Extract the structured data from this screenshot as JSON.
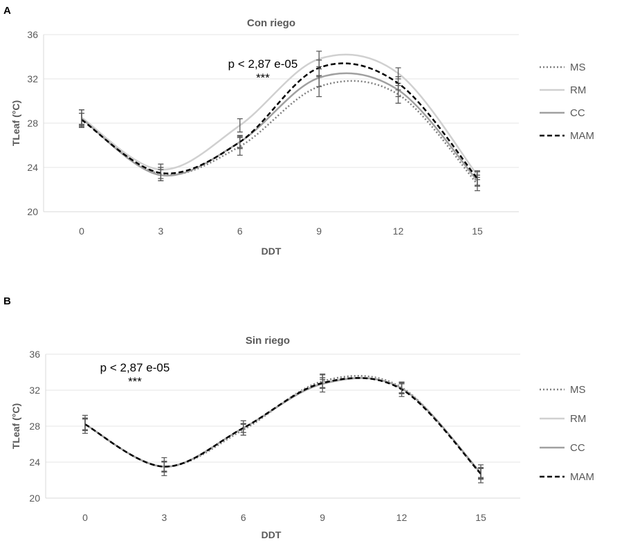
{
  "chart_data": [
    {
      "type": "line",
      "panel_label": "A",
      "title": "Con riego",
      "xlabel": "DDT",
      "ylabel": "TLeaf  (°C)",
      "x": [
        0,
        3,
        6,
        9,
        12,
        15
      ],
      "ylim": [
        20,
        36
      ],
      "yticks": [
        20,
        24,
        28,
        32,
        36
      ],
      "grid": true,
      "legend": "right",
      "smoothed": true,
      "annotation": {
        "text": "p < 2,87 e-05",
        "stars": "***"
      },
      "series": [
        {
          "name": "MS",
          "style": "dotted",
          "color": "#7f7f7f",
          "values": [
            28.4,
            23.4,
            25.9,
            31.3,
            30.6,
            22.5
          ],
          "errors": [
            0.8,
            0.6,
            0.8,
            0.9,
            0.8,
            0.6
          ]
        },
        {
          "name": "RM",
          "style": "solid",
          "color": "#d0d0d0",
          "values": [
            28.5,
            23.8,
            27.8,
            33.8,
            32.5,
            23.3
          ],
          "errors": [
            0.7,
            0.5,
            0.6,
            0.7,
            0.5,
            0.4
          ]
        },
        {
          "name": "CC",
          "style": "solid",
          "color": "#a0a0a0",
          "values": [
            28.4,
            23.3,
            26.3,
            32.1,
            31.0,
            22.8
          ],
          "errors": [
            0.5,
            0.5,
            0.5,
            0.8,
            0.6,
            0.5
          ]
        },
        {
          "name": "MAM",
          "style": "dashed",
          "color": "#000000",
          "values": [
            28.3,
            23.5,
            26.3,
            33.0,
            31.6,
            23.0
          ],
          "errors": [
            0.6,
            0.5,
            0.6,
            0.7,
            0.6,
            0.6
          ]
        }
      ]
    },
    {
      "type": "line",
      "panel_label": "B",
      "title": "Sin riego",
      "xlabel": "DDT",
      "ylabel": "TLeaf  (°C)",
      "x": [
        0,
        3,
        6,
        9,
        12,
        15
      ],
      "ylim": [
        20,
        36
      ],
      "yticks": [
        20,
        24,
        28,
        32,
        36
      ],
      "grid": true,
      "legend": "right",
      "smoothed": true,
      "annotation": {
        "text": "p < 2,87 e-05",
        "stars": "***"
      },
      "series": [
        {
          "name": "MS",
          "style": "dotted",
          "color": "#7f7f7f",
          "values": [
            28.2,
            23.5,
            27.6,
            33.0,
            32.3,
            22.7
          ],
          "errors": [
            0.7,
            0.6,
            0.6,
            0.7,
            0.6,
            0.6
          ]
        },
        {
          "name": "RM",
          "style": "solid",
          "color": "#d0d0d0",
          "values": [
            28.2,
            23.5,
            27.8,
            32.8,
            32.2,
            22.8
          ],
          "errors": [
            0.6,
            0.5,
            0.5,
            0.6,
            0.5,
            0.5
          ]
        },
        {
          "name": "CC",
          "style": "solid",
          "color": "#a0a0a0",
          "values": [
            28.2,
            23.5,
            27.8,
            32.7,
            32.2,
            22.8
          ],
          "errors": [
            0.6,
            0.6,
            0.5,
            0.5,
            0.6,
            0.6
          ]
        },
        {
          "name": "MAM",
          "style": "dashed",
          "color": "#000000",
          "values": [
            28.2,
            23.5,
            27.8,
            32.8,
            32.1,
            22.7
          ],
          "errors": [
            1.0,
            1.0,
            0.8,
            1.0,
            0.8,
            1.0
          ]
        }
      ]
    }
  ]
}
